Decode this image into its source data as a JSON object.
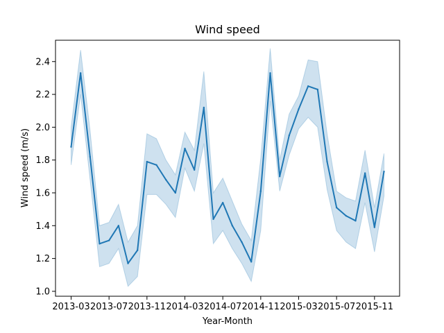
{
  "chart_data": {
    "type": "line",
    "title": "Wind speed",
    "xlabel": "Year-Month",
    "ylabel": "Wind speed (m/s)",
    "x_tick_labels": [
      "2013-03",
      "2013-07",
      "2013-11",
      "2014-03",
      "2014-07",
      "2014-11",
      "2015-03",
      "2015-07",
      "2015-11"
    ],
    "y_tick_labels": [
      "1.0",
      "1.2",
      "1.4",
      "1.6",
      "1.8",
      "2.0",
      "2.2",
      "2.4"
    ],
    "y_ticks": [
      1.0,
      1.2,
      1.4,
      1.6,
      1.8,
      2.0,
      2.2,
      2.4
    ],
    "ylim": [
      0.97,
      2.53
    ],
    "grid": false,
    "colors": {
      "line": "#1f77b4",
      "band": "#1f77b4"
    },
    "series": [
      {
        "x": [
          "2013-03",
          "2013-04",
          "2013-05",
          "2013-06",
          "2013-07",
          "2013-08",
          "2013-09",
          "2013-10",
          "2013-11",
          "2013-12",
          "2014-01",
          "2014-02",
          "2014-03",
          "2014-04",
          "2014-05",
          "2014-06",
          "2014-07",
          "2014-08",
          "2014-09",
          "2014-10",
          "2014-11",
          "2014-12",
          "2015-01",
          "2015-02",
          "2015-03",
          "2015-04",
          "2015-05",
          "2015-06",
          "2015-07",
          "2015-08",
          "2015-09",
          "2015-10",
          "2015-11",
          "2015-12"
        ],
        "values": [
          1.88,
          2.33,
          1.82,
          1.29,
          1.31,
          1.4,
          1.17,
          1.25,
          1.79,
          1.77,
          1.68,
          1.6,
          1.87,
          1.74,
          2.12,
          1.44,
          1.54,
          1.4,
          1.3,
          1.18,
          1.61,
          2.33,
          1.7,
          1.95,
          2.11,
          2.25,
          2.23,
          1.79,
          1.51,
          1.46,
          1.43,
          1.72,
          1.39,
          1.73
        ],
        "ci_lower": [
          1.77,
          2.2,
          1.68,
          1.15,
          1.17,
          1.26,
          1.03,
          1.09,
          1.59,
          1.59,
          1.53,
          1.45,
          1.75,
          1.61,
          1.9,
          1.29,
          1.37,
          1.26,
          1.17,
          1.06,
          1.37,
          2.16,
          1.61,
          1.83,
          1.99,
          2.06,
          2.0,
          1.62,
          1.37,
          1.3,
          1.26,
          1.54,
          1.24,
          1.58
        ],
        "ci_upper": [
          2.0,
          2.47,
          1.98,
          1.4,
          1.42,
          1.53,
          1.3,
          1.4,
          1.96,
          1.93,
          1.8,
          1.71,
          1.97,
          1.86,
          2.34,
          1.6,
          1.69,
          1.55,
          1.41,
          1.31,
          1.81,
          2.48,
          1.8,
          2.08,
          2.19,
          2.41,
          2.4,
          1.96,
          1.61,
          1.57,
          1.55,
          1.86,
          1.51,
          1.84
        ]
      }
    ]
  }
}
